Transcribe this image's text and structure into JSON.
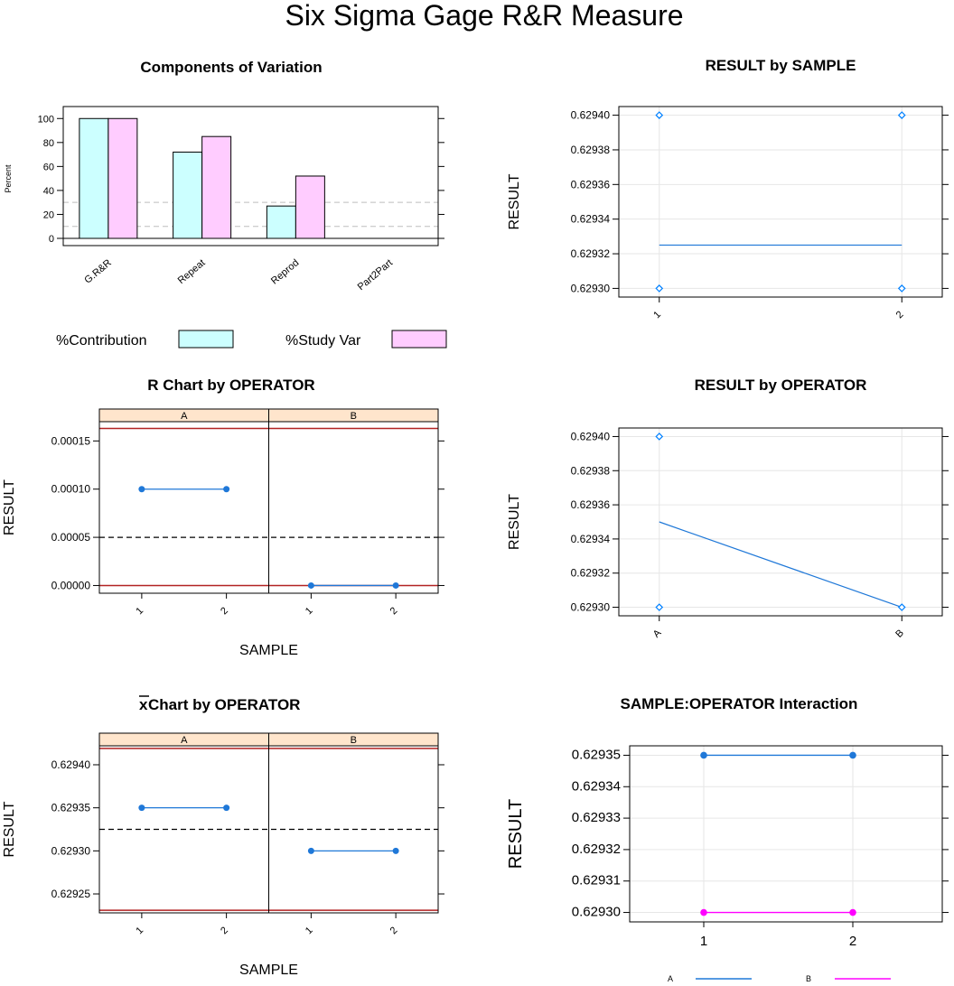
{
  "title": "Six Sigma Gage R&R Measure",
  "colors": {
    "contribution": "#ccffff",
    "study_var": "#ffccff",
    "blue": "#0080ff",
    "line_blue": "#1f78d8",
    "magenta": "#ff00ff",
    "control_red": "#b22222",
    "strip": "#ffe5cc",
    "grid": "#e6e6e6",
    "ref_dash": "#bebebe"
  },
  "chart_data": [
    {
      "id": "components",
      "type": "bar",
      "title": "Components of Variation",
      "ylabel": "Percent",
      "ylim": [
        0,
        110
      ],
      "yticks": [
        "0",
        "20",
        "40",
        "60",
        "80",
        "100"
      ],
      "reference_lines": [
        10,
        30
      ],
      "categories": [
        "G.R&R",
        "Repeat",
        "Reprod",
        "Part2Part"
      ],
      "series": [
        {
          "name": "%Contribution",
          "values": [
            100,
            72,
            27,
            0
          ]
        },
        {
          "name": "%Study Var",
          "values": [
            100,
            85,
            52,
            0
          ]
        }
      ],
      "legend": [
        "%Contribution",
        "%Study Var"
      ]
    },
    {
      "id": "result_by_sample",
      "type": "scatter",
      "title": "RESULT by SAMPLE",
      "ylabel": "RESULT",
      "ylim": [
        0.629295,
        0.629405
      ],
      "yticks": [
        "0.62930",
        "0.62932",
        "0.62934",
        "0.62936",
        "0.62938",
        "0.62940"
      ],
      "categories": [
        "1",
        "2"
      ],
      "points": [
        [
          1,
          0.6294
        ],
        [
          1,
          0.6293
        ],
        [
          2,
          0.6294
        ],
        [
          2,
          0.6293
        ]
      ],
      "mean_line": [
        0.629325,
        0.629325
      ]
    },
    {
      "id": "r_chart",
      "type": "line",
      "title": "R Chart by OPERATOR",
      "xlabel": "SAMPLE",
      "ylabel": "RESULT",
      "panels": [
        "A",
        "B"
      ],
      "ylim": [
        -8e-06,
        0.00017
      ],
      "yticks": [
        "0.00000",
        "0.00005",
        "0.00010",
        "0.00015"
      ],
      "categories": [
        "1",
        "2"
      ],
      "series": [
        {
          "name": "A",
          "values": [
            0.0001,
            0.0001
          ]
        },
        {
          "name": "B",
          "values": [
            0.0,
            0.0
          ]
        }
      ],
      "center_line": 5e-05,
      "ucl": 0.000163,
      "lcl": 0.0
    },
    {
      "id": "result_by_operator",
      "type": "scatter",
      "title": "RESULT by OPERATOR",
      "ylabel": "RESULT",
      "ylim": [
        0.629295,
        0.629405
      ],
      "yticks": [
        "0.62930",
        "0.62932",
        "0.62934",
        "0.62936",
        "0.62938",
        "0.62940"
      ],
      "categories": [
        "A",
        "B"
      ],
      "points": [
        [
          1,
          0.6294
        ],
        [
          1,
          0.6293
        ],
        [
          2,
          0.6293
        ]
      ],
      "mean_line": [
        0.62935,
        0.6293
      ]
    },
    {
      "id": "xbar_chart",
      "type": "line",
      "title_bar": "x",
      "title": " Chart by OPERATOR",
      "xlabel": "SAMPLE",
      "ylabel": "RESULT",
      "panels": [
        "A",
        "B"
      ],
      "ylim": [
        0.629228,
        0.629422
      ],
      "yticks": [
        "0.62925",
        "0.62930",
        "0.62935",
        "0.62940"
      ],
      "categories": [
        "1",
        "2"
      ],
      "series": [
        {
          "name": "A",
          "values": [
            0.62935,
            0.62935
          ]
        },
        {
          "name": "B",
          "values": [
            0.6293,
            0.6293
          ]
        }
      ],
      "center_line": 0.629325,
      "ucl": 0.629419,
      "lcl": 0.629231
    },
    {
      "id": "interaction",
      "type": "line",
      "title": "SAMPLE:OPERATOR Interaction",
      "ylabel": "RESULT",
      "ylim": [
        0.629297,
        0.629353
      ],
      "yticks": [
        "0.62930",
        "0.62931",
        "0.62932",
        "0.62933",
        "0.62934",
        "0.62935"
      ],
      "categories": [
        "1",
        "2"
      ],
      "series": [
        {
          "name": "A",
          "values": [
            0.62935,
            0.62935
          ]
        },
        {
          "name": "B",
          "values": [
            0.6293,
            0.6293
          ]
        }
      ],
      "legend": [
        "A",
        "B"
      ]
    }
  ]
}
